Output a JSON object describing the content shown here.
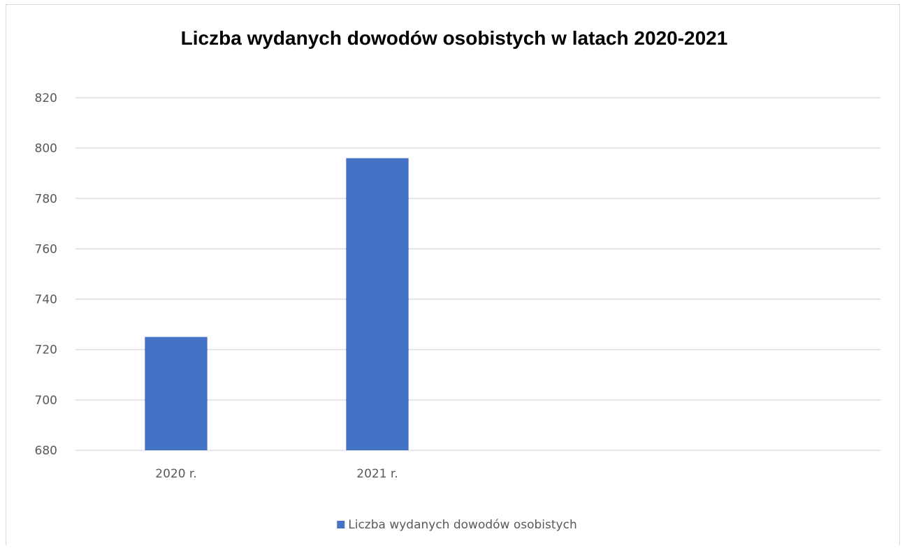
{
  "chart_data": {
    "type": "bar",
    "title": "Liczba wydanych dowodów osobistych w latach 2020-2021",
    "categories": [
      "2020 r.",
      "2021 r.",
      "",
      ""
    ],
    "series": [
      {
        "name": "Liczba wydanych dowodów osobistych",
        "values": [
          725,
          796,
          null,
          null
        ],
        "color": "#4472C4"
      }
    ],
    "y_ticks": [
      "680",
      "700",
      "720",
      "740",
      "760",
      "780",
      "800",
      "820"
    ],
    "ylim": [
      680,
      820
    ],
    "grid": true,
    "legend_position": "bottom",
    "gridline_color": "#d9d9d9",
    "text_color": "#595959"
  }
}
